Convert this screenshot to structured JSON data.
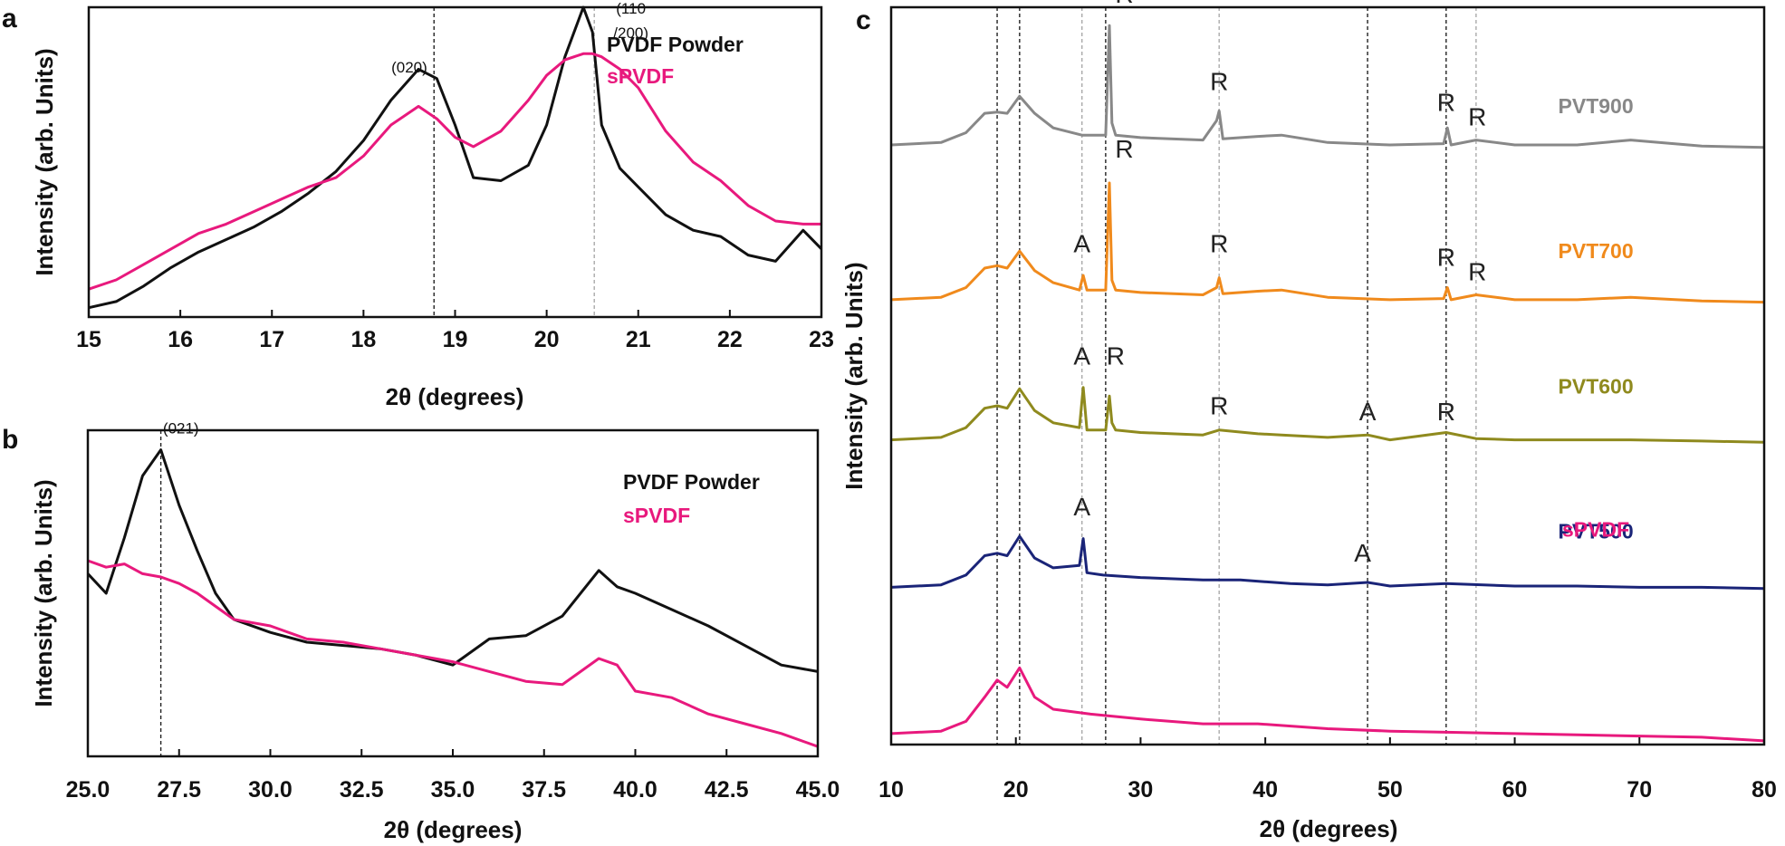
{
  "chart_data": [
    {
      "panel": "a",
      "type": "line",
      "xlabel": "2θ (degrees)",
      "ylabel": "Intensity (arb. Units)",
      "xlim": [
        15,
        23
      ],
      "ylim": [
        0,
        1
      ],
      "xticks": [
        15,
        16,
        17,
        18,
        19,
        20,
        21,
        22,
        23
      ],
      "y_tick_labels": "none",
      "grid": false,
      "legend": "top-right",
      "reference_lines": [
        18.77,
        20.52
      ],
      "annotations": [
        {
          "text": "(020)",
          "x": 18.5,
          "y": 0.79
        },
        {
          "text": "(110",
          "x": 20.92,
          "y": 0.98
        },
        {
          "text": "/200)",
          "x": 20.92,
          "y": 0.9
        }
      ],
      "series": [
        {
          "name": "PVDF Powder",
          "color": "#111111",
          "x": [
            15.0,
            15.3,
            15.6,
            15.9,
            16.2,
            16.5,
            16.8,
            17.1,
            17.4,
            17.7,
            18.0,
            18.3,
            18.6,
            18.8,
            19.0,
            19.2,
            19.5,
            19.8,
            20.0,
            20.2,
            20.4,
            20.5,
            20.6,
            20.8,
            21.0,
            21.3,
            21.6,
            21.9,
            22.2,
            22.5,
            22.8,
            23.0
          ],
          "values": [
            0.03,
            0.05,
            0.1,
            0.16,
            0.21,
            0.25,
            0.29,
            0.34,
            0.4,
            0.47,
            0.57,
            0.7,
            0.8,
            0.77,
            0.62,
            0.45,
            0.44,
            0.49,
            0.62,
            0.84,
            1.0,
            0.92,
            0.62,
            0.48,
            0.42,
            0.33,
            0.28,
            0.26,
            0.2,
            0.18,
            0.28,
            0.22
          ]
        },
        {
          "name": "sPVDF",
          "color": "#e8197d",
          "x": [
            15.0,
            15.3,
            15.6,
            15.9,
            16.2,
            16.5,
            16.8,
            17.1,
            17.4,
            17.7,
            18.0,
            18.3,
            18.6,
            18.8,
            19.0,
            19.2,
            19.5,
            19.8,
            20.0,
            20.2,
            20.4,
            20.5,
            20.6,
            20.8,
            21.0,
            21.3,
            21.6,
            21.9,
            22.2,
            22.5,
            22.8,
            23.0
          ],
          "values": [
            0.09,
            0.12,
            0.17,
            0.22,
            0.27,
            0.3,
            0.34,
            0.38,
            0.42,
            0.45,
            0.52,
            0.62,
            0.68,
            0.64,
            0.58,
            0.55,
            0.6,
            0.7,
            0.78,
            0.83,
            0.85,
            0.85,
            0.84,
            0.8,
            0.74,
            0.6,
            0.5,
            0.44,
            0.36,
            0.31,
            0.3,
            0.3
          ]
        }
      ]
    },
    {
      "panel": "b",
      "type": "line",
      "xlabel": "2θ (degrees)",
      "ylabel": "Intensity (arb. Units)",
      "xlim": [
        25,
        45
      ],
      "ylim": [
        0,
        1
      ],
      "xticks": [
        25.0,
        27.5,
        30.0,
        32.5,
        35.0,
        37.5,
        40.0,
        42.5,
        45.0
      ],
      "x_tick_labels": [
        "25.0",
        "27.5",
        "30.0",
        "32.5",
        "35.0",
        "37.5",
        "40.0",
        "42.5",
        "45.0"
      ],
      "y_tick_labels": "none",
      "grid": false,
      "legend": "top-right",
      "reference_lines": [
        27.0
      ],
      "annotations": [
        {
          "text": "(021)",
          "x": 27.55,
          "y": 0.99
        }
      ],
      "series": [
        {
          "name": "PVDF Powder",
          "color": "#111111",
          "x": [
            25.0,
            25.5,
            26.0,
            26.5,
            27.0,
            27.5,
            28.0,
            28.5,
            29.0,
            30.0,
            31.0,
            32.0,
            33.0,
            34.0,
            35.0,
            36.0,
            37.0,
            38.0,
            39.0,
            39.5,
            40.0,
            41.0,
            42.0,
            43.0,
            44.0,
            45.0
          ],
          "values": [
            0.56,
            0.5,
            0.67,
            0.86,
            0.94,
            0.77,
            0.63,
            0.5,
            0.42,
            0.38,
            0.35,
            0.34,
            0.33,
            0.31,
            0.28,
            0.36,
            0.37,
            0.43,
            0.57,
            0.52,
            0.5,
            0.45,
            0.4,
            0.34,
            0.28,
            0.26
          ]
        },
        {
          "name": "sPVDF",
          "color": "#e8197d",
          "x": [
            25.0,
            25.5,
            26.0,
            26.5,
            27.0,
            27.5,
            28.0,
            28.5,
            29.0,
            30.0,
            31.0,
            32.0,
            33.0,
            34.0,
            35.0,
            36.0,
            37.0,
            38.0,
            39.0,
            39.5,
            40.0,
            41.0,
            42.0,
            43.0,
            44.0,
            45.0
          ],
          "values": [
            0.6,
            0.58,
            0.59,
            0.56,
            0.55,
            0.53,
            0.5,
            0.46,
            0.42,
            0.4,
            0.36,
            0.35,
            0.33,
            0.31,
            0.29,
            0.26,
            0.23,
            0.22,
            0.3,
            0.28,
            0.2,
            0.18,
            0.13,
            0.1,
            0.07,
            0.03
          ]
        }
      ]
    },
    {
      "panel": "c",
      "type": "line",
      "xlabel": "2θ (degrees)",
      "ylabel": "Intensity (arb. Units)",
      "xlim": [
        10,
        80
      ],
      "ylim": [
        0,
        1
      ],
      "xticks": [
        10,
        20,
        30,
        40,
        50,
        60,
        70,
        80
      ],
      "y_tick_labels": "none",
      "grid": false,
      "legend": "none",
      "reference_lines_dark": [
        18.5,
        20.3,
        27.2,
        48.2,
        54.5
      ],
      "reference_lines_light": [
        25.3,
        36.3,
        56.9
      ],
      "series": [
        {
          "name": "PVT900",
          "color": "#888888",
          "offset": 0.81,
          "scale": 0.165,
          "x": [
            10,
            14,
            16,
            17.5,
            18.5,
            19.3,
            20.3,
            21.5,
            23,
            25.3,
            27.2,
            27.5,
            27.7,
            28,
            30,
            35,
            36.1,
            36.3,
            36.6,
            39.4,
            41.3,
            45,
            50,
            54.3,
            54.6,
            54.9,
            56.9,
            60,
            65,
            69.3,
            75,
            80
          ],
          "values": [
            0.02,
            0.04,
            0.12,
            0.28,
            0.29,
            0.28,
            0.42,
            0.28,
            0.16,
            0.1,
            0.1,
            1.0,
            0.2,
            0.1,
            0.08,
            0.06,
            0.22,
            0.3,
            0.07,
            0.09,
            0.1,
            0.04,
            0.02,
            0.03,
            0.16,
            0.02,
            0.06,
            0.02,
            0.02,
            0.06,
            0.01,
            0.0
          ]
        },
        {
          "name": "PVT700",
          "color": "#f08a1c",
          "offset": 0.6,
          "scale": 0.165,
          "x": [
            10,
            14,
            16,
            17.5,
            18.5,
            19.3,
            20.3,
            21.5,
            23,
            25.1,
            25.4,
            25.7,
            27.2,
            27.5,
            27.7,
            28,
            30,
            35,
            36.1,
            36.3,
            36.6,
            39.4,
            41.3,
            45,
            50,
            54.3,
            54.6,
            54.9,
            56.9,
            60,
            65,
            69.3,
            75,
            80
          ],
          "values": [
            0.02,
            0.04,
            0.12,
            0.28,
            0.3,
            0.28,
            0.42,
            0.26,
            0.16,
            0.1,
            0.22,
            0.1,
            0.1,
            0.98,
            0.18,
            0.1,
            0.08,
            0.06,
            0.12,
            0.2,
            0.07,
            0.09,
            0.1,
            0.04,
            0.02,
            0.03,
            0.12,
            0.02,
            0.06,
            0.02,
            0.02,
            0.04,
            0.01,
            0.0
          ]
        },
        {
          "name": "PVT600",
          "color": "#8f8a1e",
          "offset": 0.41,
          "scale": 0.165,
          "x": [
            10,
            14,
            16,
            17.5,
            18.5,
            19.3,
            20.3,
            21.5,
            23,
            25.1,
            25.4,
            25.7,
            27.2,
            27.5,
            27.7,
            28,
            30,
            35,
            36.3,
            39.4,
            41.3,
            45,
            48.2,
            50,
            54.5,
            56.9,
            60,
            65,
            69.3,
            75,
            80
          ],
          "values": [
            0.02,
            0.04,
            0.12,
            0.28,
            0.3,
            0.28,
            0.44,
            0.26,
            0.16,
            0.12,
            0.45,
            0.1,
            0.1,
            0.38,
            0.16,
            0.1,
            0.08,
            0.06,
            0.1,
            0.07,
            0.06,
            0.04,
            0.06,
            0.02,
            0.08,
            0.03,
            0.02,
            0.02,
            0.02,
            0.01,
            0.0
          ]
        },
        {
          "name": "PVT500",
          "color": "#1a2478",
          "offset": 0.21,
          "scale": 0.165,
          "x": [
            10,
            14,
            16,
            17.5,
            18.5,
            19.3,
            20.3,
            21.5,
            23,
            25.1,
            25.4,
            25.7,
            27,
            30,
            35,
            38,
            42,
            45,
            48.2,
            50,
            54.5,
            60,
            65,
            70,
            75,
            80
          ],
          "values": [
            0.02,
            0.04,
            0.12,
            0.28,
            0.3,
            0.28,
            0.44,
            0.26,
            0.18,
            0.2,
            0.42,
            0.14,
            0.12,
            0.1,
            0.08,
            0.08,
            0.05,
            0.04,
            0.06,
            0.03,
            0.05,
            0.03,
            0.03,
            0.02,
            0.02,
            0.01
          ]
        },
        {
          "name": "sPVDF",
          "color": "#e8197d",
          "offset": 0.005,
          "scale": 0.165,
          "x": [
            10,
            14,
            16,
            17.5,
            18.5,
            19.3,
            20.3,
            21.5,
            23,
            26,
            30,
            35,
            39.4,
            45,
            50,
            55,
            60,
            65,
            70,
            75,
            80
          ],
          "values": [
            0.06,
            0.08,
            0.16,
            0.36,
            0.5,
            0.44,
            0.6,
            0.36,
            0.26,
            0.22,
            0.18,
            0.14,
            0.14,
            0.1,
            0.08,
            0.07,
            0.06,
            0.05,
            0.04,
            0.03,
            0.0
          ]
        }
      ],
      "peak_marks": [
        {
          "text": "R",
          "series": "PVT900",
          "x": 28.7,
          "y": 1.19
        },
        {
          "text": "R",
          "series": "PVT900",
          "x": 36.3,
          "y": 0.47
        },
        {
          "text": "R",
          "series": "PVT900",
          "x": 54.5,
          "y": 0.3
        },
        {
          "text": "R",
          "series": "PVT900",
          "x": 57.0,
          "y": 0.18
        },
        {
          "text": "A",
          "series": "PVT700",
          "x": 25.3,
          "y": 0.41
        },
        {
          "text": "R",
          "series": "PVT700",
          "x": 28.7,
          "y": 1.19
        },
        {
          "text": "R",
          "series": "PVT700",
          "x": 36.3,
          "y": 0.41
        },
        {
          "text": "R",
          "series": "PVT700",
          "x": 54.5,
          "y": 0.3
        },
        {
          "text": "R",
          "series": "PVT700",
          "x": 57.0,
          "y": 0.18
        },
        {
          "text": "A",
          "series": "PVT600",
          "x": 25.3,
          "y": 0.64
        },
        {
          "text": "R",
          "series": "PVT600",
          "x": 28.0,
          "y": 0.64
        },
        {
          "text": "R",
          "series": "PVT600",
          "x": 36.3,
          "y": 0.23
        },
        {
          "text": "A",
          "series": "PVT600",
          "x": 48.2,
          "y": 0.18
        },
        {
          "text": "R",
          "series": "PVT600",
          "x": 54.5,
          "y": 0.18
        },
        {
          "text": "A",
          "series": "PVT500",
          "x": 25.3,
          "y": 0.61
        },
        {
          "text": "A",
          "series": "PVT500",
          "x": 47.8,
          "y": 0.23
        }
      ],
      "series_labels": [
        {
          "text": "PVT900",
          "series": "PVT900",
          "x": 66.5,
          "y": 0.28
        },
        {
          "text": "PVT700",
          "series": "PVT700",
          "x": 66.5,
          "y": 0.36
        },
        {
          "text": "PVT600",
          "series": "PVT600",
          "x": 66.5,
          "y": 0.4
        },
        {
          "text": "PVT500",
          "series": "PVT500",
          "x": 66.5,
          "y": 0.42
        },
        {
          "text": "sPVDF",
          "series": "sPVDF",
          "x": 66.5,
          "y": 1.68
        }
      ]
    }
  ]
}
